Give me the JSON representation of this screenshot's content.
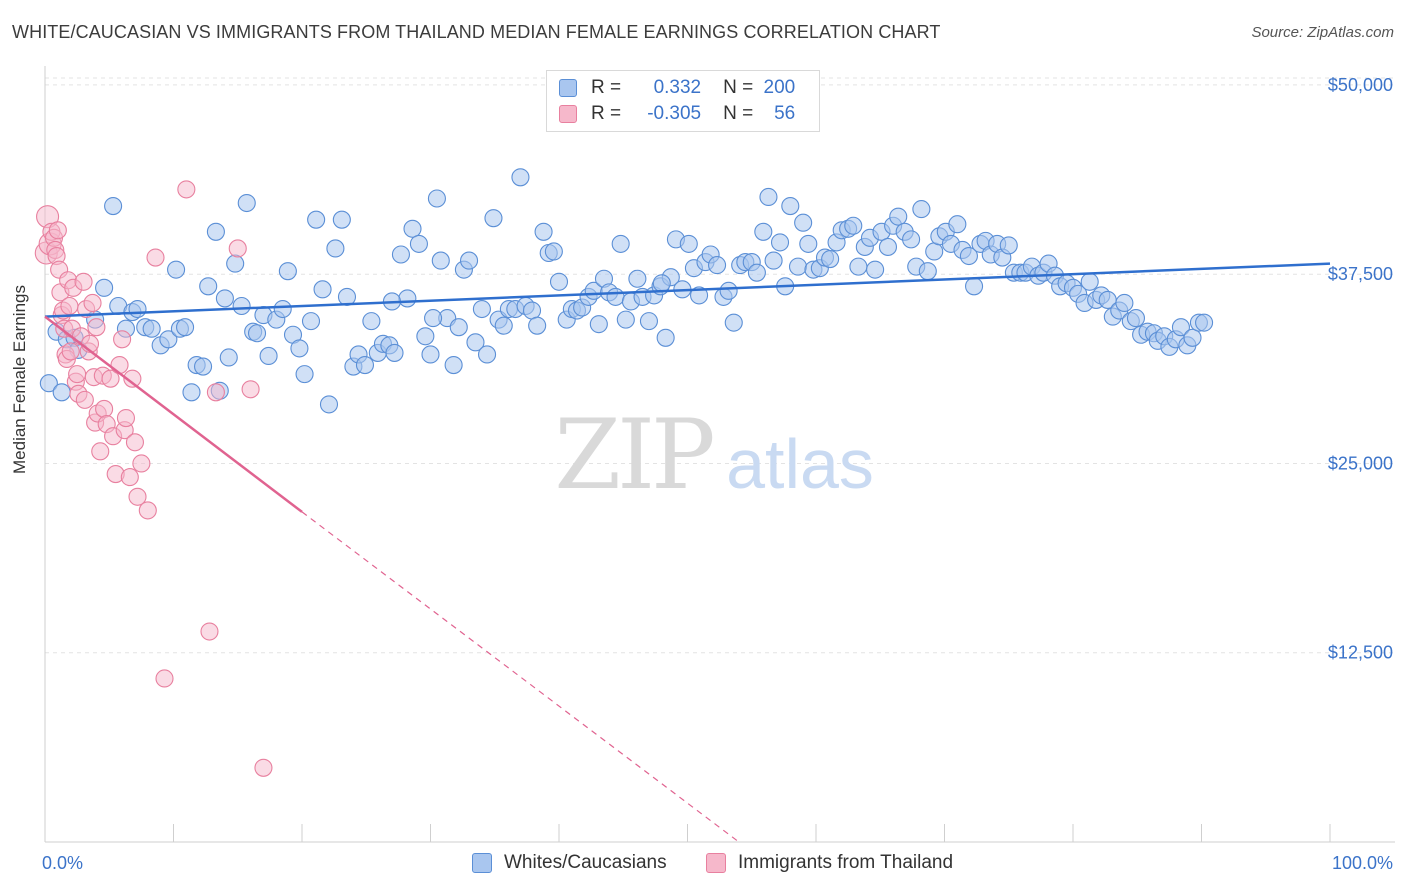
{
  "header": {
    "title": "WHITE/CAUCASIAN VS IMMIGRANTS FROM THAILAND MEDIAN FEMALE EARNINGS CORRELATION CHART",
    "source": "Source: ZipAtlas.com"
  },
  "watermark": {
    "zip": "ZIP",
    "atlas": "atlas"
  },
  "legend": {
    "rows": [
      {
        "r_label": "R =",
        "r_value": "0.332",
        "n_label": "N =",
        "n_value": "200",
        "color": "#a9c6ef"
      },
      {
        "r_label": "R =",
        "r_value": "-0.305",
        "n_label": "N =",
        "n_value": "56",
        "color": "#f6b8cb"
      }
    ]
  },
  "bottom_legend": {
    "items": [
      {
        "label": "Whites/Caucasians",
        "color": "#a9c6ef"
      },
      {
        "label": "Immigrants from Thailand",
        "color": "#f6b8cb"
      }
    ]
  },
  "chart_data": {
    "type": "scatter",
    "ylabel": "Median Female Earnings",
    "x_tick_labels": [
      "0.0%",
      "100.0%"
    ],
    "y_tick_labels": [
      "$50,000",
      "$37,500",
      "$25,000",
      "$12,500"
    ],
    "y_ticks": [
      50000,
      37500,
      25000,
      12500
    ],
    "xlim": [
      0,
      100
    ],
    "ylim": [
      0,
      51250
    ],
    "grid": "horizontal dashed",
    "colors": {
      "blue_fill": "#a9c6ef",
      "blue_stroke": "#5b8fd6",
      "blue_line": "#2f6fce",
      "pink_fill": "#f6b8cb",
      "pink_stroke": "#e8809f",
      "pink_line": "#e06390"
    },
    "series": [
      {
        "name": "Whites/Caucasians",
        "trend": {
          "x": [
            0,
            100
          ],
          "y": [
            34700,
            38200
          ]
        },
        "points": [
          [
            0.3,
            30300
          ],
          [
            0.9,
            33700
          ],
          [
            1.3,
            29700
          ],
          [
            1.7,
            33200
          ],
          [
            2.3,
            33300
          ],
          [
            2.6,
            32500
          ],
          [
            3.9,
            34500
          ],
          [
            4.6,
            36600
          ],
          [
            5.3,
            42000
          ],
          [
            5.7,
            35400
          ],
          [
            6.3,
            33900
          ],
          [
            6.8,
            35000
          ],
          [
            7.2,
            35200
          ],
          [
            7.8,
            34000
          ],
          [
            8.3,
            33900
          ],
          [
            9.0,
            32800
          ],
          [
            9.6,
            33200
          ],
          [
            10.2,
            37800
          ],
          [
            10.5,
            33900
          ],
          [
            10.9,
            34000
          ],
          [
            11.4,
            29700
          ],
          [
            11.8,
            31500
          ],
          [
            12.3,
            31400
          ],
          [
            12.7,
            36700
          ],
          [
            13.3,
            40300
          ],
          [
            13.6,
            29800
          ],
          [
            14.3,
            32000
          ],
          [
            14.8,
            38200
          ],
          [
            15.3,
            35400
          ],
          [
            15.7,
            42200
          ],
          [
            16.2,
            33700
          ],
          [
            16.5,
            33600
          ],
          [
            17.0,
            34800
          ],
          [
            17.4,
            32100
          ],
          [
            18.0,
            34500
          ],
          [
            18.5,
            35200
          ],
          [
            18.9,
            37700
          ],
          [
            19.3,
            33500
          ],
          [
            19.8,
            32600
          ],
          [
            20.2,
            30900
          ],
          [
            20.7,
            34400
          ],
          [
            21.1,
            41100
          ],
          [
            21.6,
            36500
          ],
          [
            22.1,
            28900
          ],
          [
            22.6,
            39200
          ],
          [
            23.1,
            41100
          ],
          [
            23.5,
            36000
          ],
          [
            24.0,
            31400
          ],
          [
            24.4,
            32200
          ],
          [
            24.9,
            31500
          ],
          [
            25.4,
            34400
          ],
          [
            25.9,
            32300
          ],
          [
            26.3,
            32900
          ],
          [
            26.8,
            32800
          ],
          [
            27.2,
            32300
          ],
          [
            27.7,
            38800
          ],
          [
            28.2,
            35900
          ],
          [
            28.6,
            40500
          ],
          [
            29.1,
            39500
          ],
          [
            29.6,
            33400
          ],
          [
            30.0,
            32200
          ],
          [
            30.5,
            42500
          ],
          [
            30.8,
            38400
          ],
          [
            31.3,
            34600
          ],
          [
            31.8,
            31500
          ],
          [
            32.2,
            34000
          ],
          [
            32.6,
            37800
          ],
          [
            33.0,
            38400
          ],
          [
            33.5,
            33000
          ],
          [
            34.0,
            35200
          ],
          [
            34.4,
            32200
          ],
          [
            34.9,
            41200
          ],
          [
            35.3,
            34500
          ],
          [
            35.7,
            34100
          ],
          [
            36.1,
            35200
          ],
          [
            36.6,
            35200
          ],
          [
            37.0,
            43900
          ],
          [
            37.4,
            35400
          ],
          [
            37.9,
            35100
          ],
          [
            38.3,
            34100
          ],
          [
            38.8,
            40300
          ],
          [
            39.2,
            38900
          ],
          [
            39.6,
            39000
          ],
          [
            40.0,
            37000
          ],
          [
            40.6,
            34500
          ],
          [
            41.0,
            35200
          ],
          [
            41.4,
            35100
          ],
          [
            41.8,
            35300
          ],
          [
            42.3,
            36000
          ],
          [
            42.7,
            36400
          ],
          [
            43.1,
            34200
          ],
          [
            43.5,
            37200
          ],
          [
            43.9,
            36300
          ],
          [
            44.4,
            36000
          ],
          [
            44.8,
            39500
          ],
          [
            45.2,
            34500
          ],
          [
            45.6,
            35700
          ],
          [
            46.1,
            37200
          ],
          [
            46.5,
            36000
          ],
          [
            47.0,
            34400
          ],
          [
            47.4,
            36100
          ],
          [
            47.9,
            36700
          ],
          [
            48.3,
            33300
          ],
          [
            48.7,
            37300
          ],
          [
            49.1,
            39800
          ],
          [
            49.6,
            36500
          ],
          [
            50.1,
            39500
          ],
          [
            50.5,
            37900
          ],
          [
            50.9,
            36100
          ],
          [
            51.4,
            38300
          ],
          [
            51.8,
            38800
          ],
          [
            52.3,
            38100
          ],
          [
            52.8,
            36000
          ],
          [
            53.2,
            36400
          ],
          [
            53.6,
            34300
          ],
          [
            54.1,
            38100
          ],
          [
            54.5,
            38300
          ],
          [
            55.0,
            38300
          ],
          [
            55.4,
            37600
          ],
          [
            55.9,
            40300
          ],
          [
            56.3,
            42600
          ],
          [
            56.7,
            38400
          ],
          [
            57.2,
            39600
          ],
          [
            57.6,
            36700
          ],
          [
            58.0,
            42000
          ],
          [
            58.6,
            38000
          ],
          [
            59.0,
            40900
          ],
          [
            59.4,
            39500
          ],
          [
            59.8,
            37800
          ],
          [
            60.3,
            37900
          ],
          [
            60.7,
            38600
          ],
          [
            61.1,
            38500
          ],
          [
            61.6,
            39600
          ],
          [
            62.0,
            40400
          ],
          [
            62.5,
            40500
          ],
          [
            62.9,
            40700
          ],
          [
            63.3,
            38000
          ],
          [
            63.8,
            39300
          ],
          [
            64.2,
            39900
          ],
          [
            64.6,
            37800
          ],
          [
            65.1,
            40300
          ],
          [
            65.6,
            39300
          ],
          [
            66.0,
            40700
          ],
          [
            66.4,
            41300
          ],
          [
            66.9,
            40300
          ],
          [
            67.4,
            39800
          ],
          [
            67.8,
            38000
          ],
          [
            68.2,
            41800
          ],
          [
            68.7,
            37700
          ],
          [
            69.2,
            39000
          ],
          [
            69.6,
            40000
          ],
          [
            70.1,
            40300
          ],
          [
            70.5,
            39500
          ],
          [
            71.0,
            40800
          ],
          [
            71.4,
            39100
          ],
          [
            71.9,
            38700
          ],
          [
            72.3,
            36700
          ],
          [
            72.8,
            39500
          ],
          [
            73.2,
            39700
          ],
          [
            73.6,
            38800
          ],
          [
            74.1,
            39500
          ],
          [
            74.5,
            38600
          ],
          [
            75.0,
            39400
          ],
          [
            75.4,
            37600
          ],
          [
            75.9,
            37600
          ],
          [
            76.3,
            37600
          ],
          [
            76.8,
            38000
          ],
          [
            77.3,
            37400
          ],
          [
            77.7,
            37600
          ],
          [
            78.1,
            38200
          ],
          [
            78.6,
            37400
          ],
          [
            79.0,
            36700
          ],
          [
            79.5,
            36900
          ],
          [
            80.0,
            36600
          ],
          [
            80.4,
            36200
          ],
          [
            80.9,
            35600
          ],
          [
            81.3,
            37000
          ],
          [
            81.8,
            35800
          ],
          [
            82.2,
            36100
          ],
          [
            82.7,
            35800
          ],
          [
            83.1,
            34700
          ],
          [
            83.6,
            35100
          ],
          [
            84.0,
            35600
          ],
          [
            84.5,
            34400
          ],
          [
            84.9,
            34600
          ],
          [
            85.3,
            33500
          ],
          [
            85.8,
            33700
          ],
          [
            86.3,
            33600
          ],
          [
            86.6,
            33100
          ],
          [
            87.1,
            33400
          ],
          [
            87.5,
            32700
          ],
          [
            88.0,
            33200
          ],
          [
            88.4,
            34000
          ],
          [
            88.9,
            32800
          ],
          [
            89.3,
            33300
          ],
          [
            89.8,
            34300
          ],
          [
            90.2,
            34300
          ],
          [
            27.0,
            35700
          ],
          [
            14.0,
            35900
          ],
          [
            30.2,
            34600
          ],
          [
            48.0,
            36900
          ]
        ]
      },
      {
        "name": "Immigrants from Thailand",
        "trend": {
          "x": [
            0,
            20
          ],
          "y": [
            34700,
            21800
          ]
        },
        "trend_extension": {
          "x": [
            20,
            54
          ],
          "y": [
            21800,
            0
          ]
        },
        "points": [
          [
            0.1,
            38900
          ],
          [
            0.2,
            41300
          ],
          [
            0.4,
            39500
          ],
          [
            0.5,
            40300
          ],
          [
            0.7,
            39900
          ],
          [
            0.8,
            39100
          ],
          [
            0.9,
            38700
          ],
          [
            1.0,
            40400
          ],
          [
            1.1,
            37800
          ],
          [
            1.2,
            36300
          ],
          [
            1.3,
            34800
          ],
          [
            1.4,
            35100
          ],
          [
            1.5,
            33900
          ],
          [
            1.6,
            32200
          ],
          [
            1.7,
            31900
          ],
          [
            1.8,
            37100
          ],
          [
            1.9,
            35400
          ],
          [
            2.0,
            32400
          ],
          [
            2.1,
            33900
          ],
          [
            2.2,
            36600
          ],
          [
            2.4,
            30400
          ],
          [
            2.5,
            30900
          ],
          [
            2.6,
            29600
          ],
          [
            2.8,
            33400
          ],
          [
            3.0,
            37000
          ],
          [
            3.1,
            29200
          ],
          [
            3.2,
            35200
          ],
          [
            3.4,
            32400
          ],
          [
            3.5,
            32900
          ],
          [
            3.7,
            35600
          ],
          [
            3.8,
            30700
          ],
          [
            3.9,
            27700
          ],
          [
            4.0,
            34000
          ],
          [
            4.1,
            28300
          ],
          [
            4.3,
            25800
          ],
          [
            4.5,
            30800
          ],
          [
            4.6,
            28600
          ],
          [
            4.8,
            27600
          ],
          [
            5.1,
            30600
          ],
          [
            5.3,
            26800
          ],
          [
            5.5,
            24300
          ],
          [
            5.8,
            31500
          ],
          [
            6.0,
            33200
          ],
          [
            6.2,
            27200
          ],
          [
            6.3,
            28000
          ],
          [
            6.6,
            24100
          ],
          [
            6.8,
            30600
          ],
          [
            7.0,
            26400
          ],
          [
            7.2,
            22800
          ],
          [
            7.5,
            25000
          ],
          [
            8.0,
            21900
          ],
          [
            8.6,
            38600
          ],
          [
            9.3,
            10800
          ],
          [
            11.0,
            43100
          ],
          [
            12.8,
            13900
          ],
          [
            13.3,
            29700
          ],
          [
            15.0,
            39200
          ],
          [
            16.0,
            29900
          ],
          [
            17.0,
            4900
          ]
        ]
      }
    ]
  }
}
